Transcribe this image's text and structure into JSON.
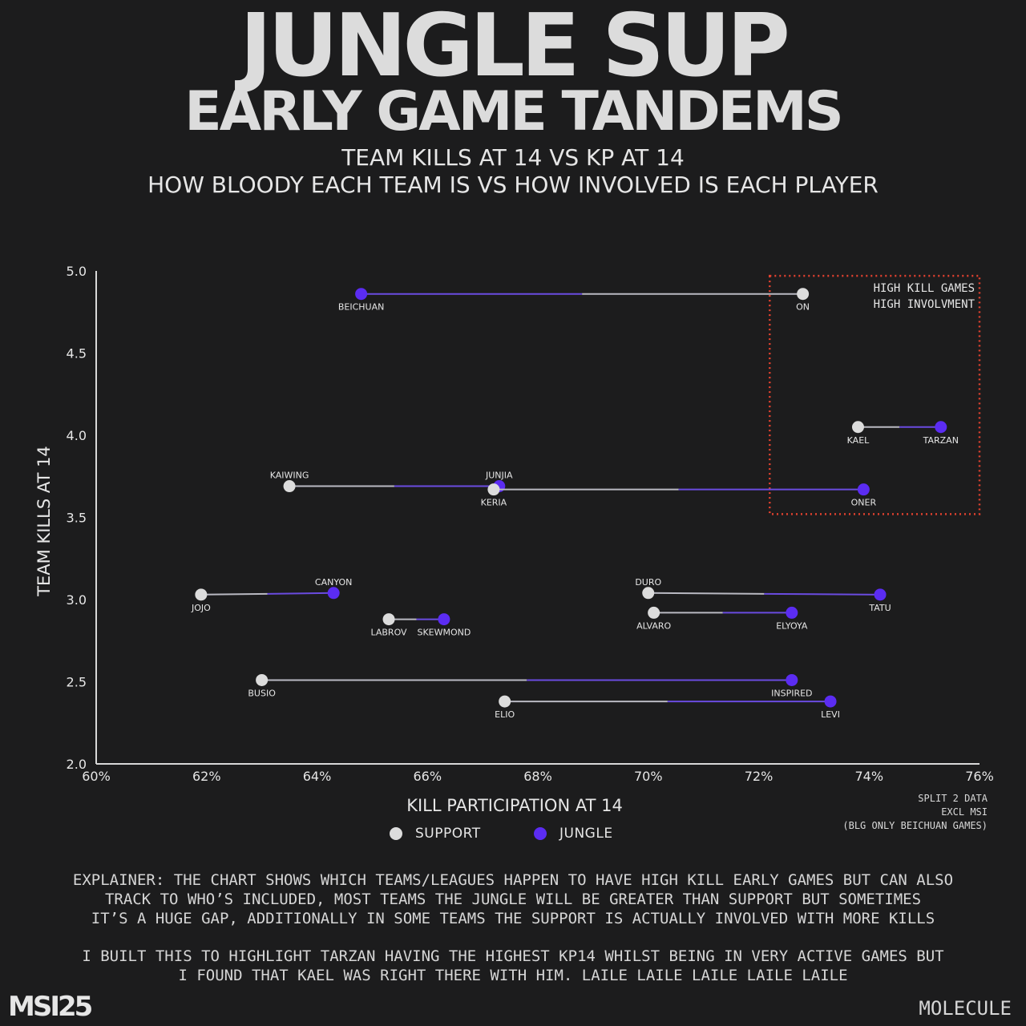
{
  "header": {
    "title_line1": "JUNGLE SUP",
    "title_line2": "EARLY GAME TANDEMS",
    "subtitle_line1": "TEAM KILLS AT 14 VS KP AT 14",
    "subtitle_line2": "HOW BLOODY EACH TEAM IS VS HOW INVOLVED IS EACH PLAYER"
  },
  "colors": {
    "background": "#1c1c1d",
    "support": "#dcdcdc",
    "jungle": "#5b2cf2",
    "highlight_box": "#e0412f",
    "axis": "#d8d8d8"
  },
  "chart_data": {
    "type": "scatter",
    "xlabel": "KILL PARTICIPATION AT 14",
    "ylabel": "TEAM KILLS AT 14",
    "xlim": [
      60,
      76
    ],
    "ylim": [
      2.0,
      5.0
    ],
    "xticks": [
      "60%",
      "62%",
      "64%",
      "66%",
      "68%",
      "70%",
      "72%",
      "74%",
      "76%"
    ],
    "yticks": [
      "2.0",
      "2.5",
      "3.0",
      "3.5",
      "4.0",
      "4.5",
      "5.0"
    ],
    "legend": [
      {
        "name": "SUPPORT",
        "role": "support"
      },
      {
        "name": "JUNGLE",
        "role": "jungle"
      }
    ],
    "pairs": [
      {
        "support": {
          "name": "ON",
          "kp": 72.8,
          "tk": 4.86
        },
        "jungle": {
          "name": "BEICHUAN",
          "kp": 64.8,
          "tk": 4.86
        }
      },
      {
        "support": {
          "name": "KAEL",
          "kp": 73.8,
          "tk": 4.05
        },
        "jungle": {
          "name": "TARZAN",
          "kp": 75.3,
          "tk": 4.05
        }
      },
      {
        "support": {
          "name": "KAIWING",
          "kp": 63.5,
          "tk": 3.69
        },
        "jungle": {
          "name": "JUNJIA",
          "kp": 67.3,
          "tk": 3.69
        }
      },
      {
        "support": {
          "name": "KERIA",
          "kp": 67.2,
          "tk": 3.67
        },
        "jungle": {
          "name": "ONER",
          "kp": 73.9,
          "tk": 3.67
        }
      },
      {
        "support": {
          "name": "JOJO",
          "kp": 61.9,
          "tk": 3.03
        },
        "jungle": {
          "name": "CANYON",
          "kp": 64.3,
          "tk": 3.04
        }
      },
      {
        "support": {
          "name": "DURO",
          "kp": 70.0,
          "tk": 3.04
        },
        "jungle": {
          "name": "TATU",
          "kp": 74.2,
          "tk": 3.03
        }
      },
      {
        "support": {
          "name": "LABROV",
          "kp": 65.3,
          "tk": 2.88
        },
        "jungle": {
          "name": "SKEWMOND",
          "kp": 66.3,
          "tk": 2.88
        }
      },
      {
        "support": {
          "name": "ALVARO",
          "kp": 70.1,
          "tk": 2.92
        },
        "jungle": {
          "name": "ELYOYA",
          "kp": 72.6,
          "tk": 2.92
        }
      },
      {
        "support": {
          "name": "BUSIO",
          "kp": 63.0,
          "tk": 2.51
        },
        "jungle": {
          "name": "INSPIRED",
          "kp": 72.6,
          "tk": 2.51
        }
      },
      {
        "support": {
          "name": "ELIO",
          "kp": 67.4,
          "tk": 2.38
        },
        "jungle": {
          "name": "LEVI",
          "kp": 73.3,
          "tk": 2.38
        }
      }
    ],
    "highlight_region": {
      "x_range": [
        72.2,
        76.0
      ],
      "y_range": [
        3.52,
        4.97
      ],
      "label_line1": "HIGH KILL GAMES",
      "label_line2": "HIGH INVOLVMENT"
    }
  },
  "notes": {
    "line1": "SPLIT 2 DATA",
    "line2": "EXCL MSI",
    "line3": "(BLG ONLY BEICHUAN GAMES)"
  },
  "explainer": {
    "p1_line1": "EXPLAINER: THE CHART SHOWS WHICH TEAMS/LEAGUES HAPPEN TO HAVE HIGH KILL EARLY GAMES BUT CAN ALSO",
    "p1_line2": "TRACK TO WHO’S INCLUDED, MOST TEAMS THE JUNGLE WILL BE GREATER THAN SUPPORT BUT SOMETIMES",
    "p1_line3": "IT’S A HUGE GAP, ADDITIONALLY IN SOME TEAMS THE SUPPORT IS ACTUALLY INVOLVED WITH MORE KILLS",
    "p2_line1": "I BUILT THIS TO HIGHLIGHT TARZAN HAVING THE HIGHEST KP14 WHILST BEING IN VERY ACTIVE GAMES BUT",
    "p2_line2": "I FOUND THAT KAEL WAS RIGHT THERE WITH HIM. LAILE LAILE LAILE LAILE LAILE"
  },
  "footer": {
    "logo_text": "MSI25",
    "brand": "MOLECULE"
  }
}
